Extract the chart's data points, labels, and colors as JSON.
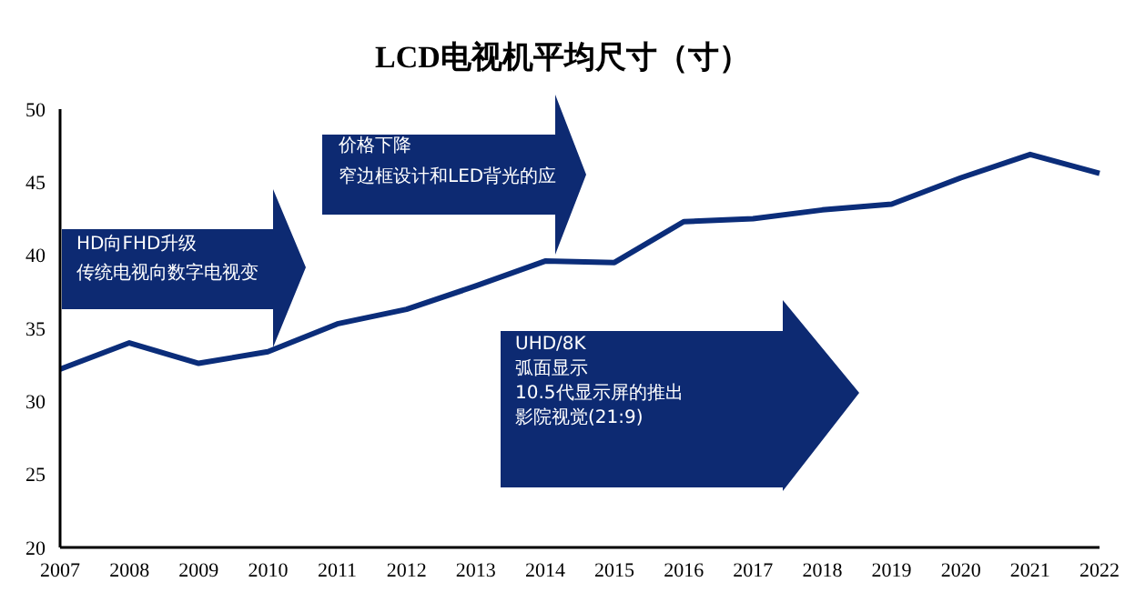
{
  "chart_data": {
    "type": "line",
    "title": "LCD电视机平均尺寸（寸）",
    "categories": [
      "2007",
      "2008",
      "2009",
      "2010",
      "2011",
      "2012",
      "2013",
      "2014",
      "2015",
      "2016",
      "2017",
      "2018",
      "2019",
      "2020",
      "2021",
      "2022"
    ],
    "series": [
      {
        "color": "#0b2d7a",
        "values": [
          32.2,
          34.0,
          32.6,
          33.4,
          35.3,
          36.3,
          37.9,
          39.6,
          39.5,
          42.3,
          42.5,
          43.1,
          43.5,
          45.3,
          46.9,
          45.6
        ]
      }
    ],
    "ylim": [
      20,
      50
    ],
    "yticks": [
      20,
      25,
      30,
      35,
      40,
      45,
      50
    ],
    "grid": false,
    "marker": "none",
    "annotations": [
      "HD向FHD升级",
      "传统电视向数字电视变",
      "价格下降",
      "窄边框设计和LED背光的应",
      "UHD/8K",
      "弧面显示",
      "10.5代显示屏的推出",
      "影院视觉(21:9)"
    ]
  }
}
